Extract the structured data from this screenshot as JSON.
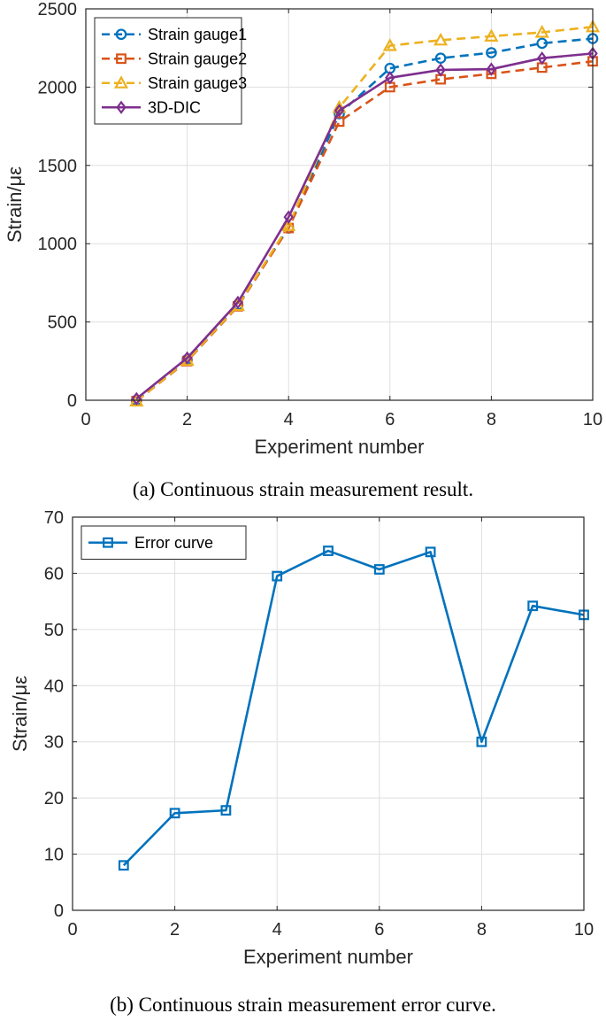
{
  "chart_data": [
    {
      "type": "line",
      "caption": "(a) Continuous strain measurement result.",
      "xlabel": "Experiment number",
      "ylabel": "Strain/με",
      "xlim": [
        0,
        10
      ],
      "ylim": [
        0,
        2500
      ],
      "xticks": [
        0,
        2,
        4,
        6,
        8,
        10
      ],
      "yticks": [
        0,
        500,
        1000,
        1500,
        2000,
        2500
      ],
      "grid": true,
      "legend_position": "top-left",
      "x": [
        1,
        2,
        3,
        4,
        5,
        6,
        7,
        8,
        9,
        10
      ],
      "series": [
        {
          "name": "Strain gauge1",
          "color": "#0072BD",
          "dash": "dashed",
          "marker": "circle",
          "values": [
            0,
            260,
            610,
            1100,
            1830,
            2120,
            2185,
            2220,
            2280,
            2310
          ]
        },
        {
          "name": "Strain gauge2",
          "color": "#D95319",
          "dash": "dashed",
          "marker": "square",
          "values": [
            -5,
            250,
            600,
            1100,
            1780,
            2000,
            2050,
            2085,
            2125,
            2165
          ]
        },
        {
          "name": "Strain gauge3",
          "color": "#EDB120",
          "dash": "dashed",
          "marker": "triangle",
          "values": [
            -5,
            255,
            605,
            1115,
            1870,
            2265,
            2300,
            2325,
            2350,
            2385
          ]
        },
        {
          "name": "3D-DIC",
          "color": "#7E2F8E",
          "dash": "solid",
          "marker": "diamond",
          "values": [
            10,
            270,
            625,
            1170,
            1850,
            2060,
            2110,
            2115,
            2185,
            2215
          ]
        }
      ]
    },
    {
      "type": "line",
      "caption": "(b) Continuous strain measurement error curve.",
      "xlabel": "Experiment number",
      "ylabel": "Strain/με",
      "xlim": [
        0,
        10
      ],
      "ylim": [
        0,
        70
      ],
      "xticks": [
        0,
        2,
        4,
        6,
        8,
        10
      ],
      "yticks": [
        0,
        10,
        20,
        30,
        40,
        50,
        60,
        70
      ],
      "grid": true,
      "legend_position": "top-left",
      "x": [
        1,
        2,
        3,
        4,
        5,
        6,
        7,
        8,
        9,
        10
      ],
      "series": [
        {
          "name": "Error curve",
          "color": "#0072BD",
          "dash": "solid",
          "marker": "square",
          "values": [
            8,
            17.3,
            17.8,
            59.5,
            64,
            60.7,
            63.8,
            30,
            54.2,
            52.6
          ]
        }
      ]
    }
  ]
}
